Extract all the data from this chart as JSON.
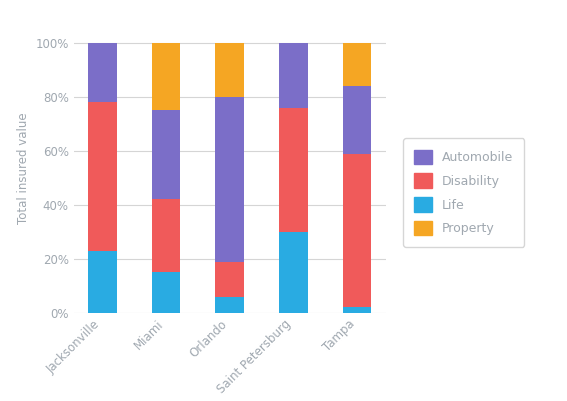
{
  "categories": [
    "Jacksonville",
    "Miami",
    "Orlando",
    "Saint Petersburg",
    "Tampa"
  ],
  "life": [
    23,
    15,
    6,
    30,
    2
  ],
  "disability": [
    55,
    27,
    13,
    46,
    57
  ],
  "automobile": [
    22,
    33,
    61,
    24,
    25
  ],
  "property": [
    0,
    25,
    20,
    0,
    16
  ],
  "colors": {
    "Life": "#29abe2",
    "Disability": "#f05a5a",
    "Automobile": "#7b6ec8",
    "Property": "#f5a623"
  },
  "ylabel": "Total insured value",
  "yticks": [
    0,
    20,
    40,
    60,
    80,
    100
  ],
  "yticklabels": [
    "0%",
    "20%",
    "40%",
    "60%",
    "80%",
    "100%"
  ],
  "bg_color": "#ffffff",
  "grid_color": "#d5d5d5",
  "tick_color": "#a0a8b0",
  "bar_width": 0.45,
  "legend_entries": [
    "Automobile",
    "Disability",
    "Life",
    "Property"
  ]
}
